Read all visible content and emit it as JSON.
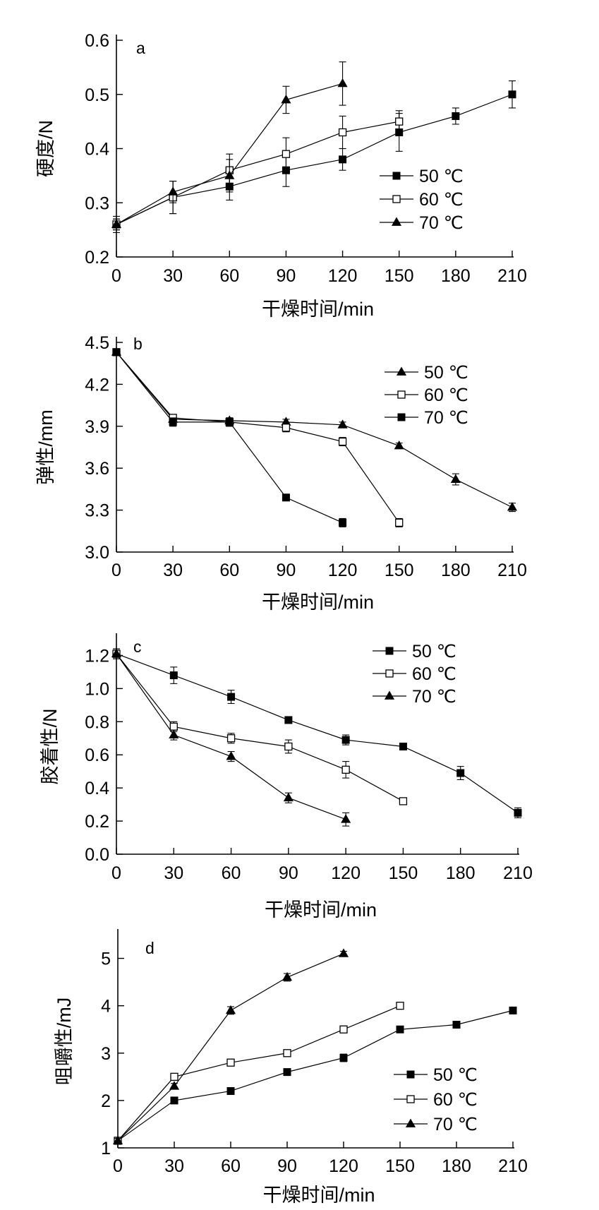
{
  "chart_data": [
    {
      "type": "line",
      "panel_label": "a",
      "xlabel": "干燥时间/min",
      "ylabel": "硬度/N",
      "x_ticks": [
        0,
        30,
        60,
        90,
        120,
        150,
        180,
        210
      ],
      "y_ticks": [
        "0.2",
        "0.3",
        "0.4",
        "0.5",
        "0.6"
      ],
      "xlim": [
        0,
        210
      ],
      "ylim": [
        0.2,
        0.6
      ],
      "legend_position": "lower-right",
      "series": [
        {
          "name": "50 ℃",
          "marker": "filled-square",
          "x": [
            0,
            30,
            60,
            90,
            120,
            150,
            180,
            210
          ],
          "y": [
            0.26,
            0.31,
            0.33,
            0.36,
            0.38,
            0.43,
            0.46,
            0.5
          ],
          "err": [
            0.015,
            0.03,
            0.025,
            0.03,
            0.02,
            0.035,
            0.015,
            0.025
          ]
        },
        {
          "name": "60 ℃",
          "marker": "open-square",
          "x": [
            0,
            30,
            60,
            90,
            120,
            150
          ],
          "y": [
            0.26,
            0.31,
            0.36,
            0.39,
            0.43,
            0.45
          ],
          "err": [
            0.01,
            0.03,
            0.03,
            0.03,
            0.03,
            0.02
          ]
        },
        {
          "name": "70 ℃",
          "marker": "filled-triangle",
          "x": [
            0,
            30,
            60,
            90,
            120
          ],
          "y": [
            0.26,
            0.32,
            0.35,
            0.49,
            0.52
          ],
          "err": [
            0.01,
            0.02,
            0.03,
            0.025,
            0.04
          ]
        }
      ]
    },
    {
      "type": "line",
      "panel_label": "b",
      "xlabel": "干燥时间/min",
      "ylabel": "弹性/mm",
      "x_ticks": [
        0,
        30,
        60,
        90,
        120,
        150,
        180,
        210
      ],
      "y_ticks": [
        "3.0",
        "3.3",
        "3.6",
        "3.9",
        "4.2",
        "4.5"
      ],
      "xlim": [
        0,
        210
      ],
      "ylim": [
        3.0,
        4.5
      ],
      "legend_position": "top-right",
      "series": [
        {
          "name": "50 ℃",
          "marker": "filled-triangle",
          "x": [
            0,
            30,
            60,
            90,
            120,
            150,
            180,
            210
          ],
          "y": [
            4.43,
            3.95,
            3.94,
            3.93,
            3.91,
            3.76,
            3.52,
            3.32
          ],
          "err": [
            0.02,
            0.02,
            0.02,
            0.02,
            0.02,
            0.02,
            0.04,
            0.03
          ]
        },
        {
          "name": "60 ℃",
          "marker": "open-square",
          "x": [
            0,
            30,
            60,
            90,
            120,
            150
          ],
          "y": [
            4.43,
            3.96,
            3.93,
            3.89,
            3.79,
            3.21
          ],
          "err": [
            0.02,
            0.02,
            0.03,
            0.03,
            0.03,
            0.03
          ]
        },
        {
          "name": "70 ℃",
          "marker": "filled-square",
          "x": [
            0,
            30,
            60,
            90,
            120
          ],
          "y": [
            4.43,
            3.93,
            3.93,
            3.39,
            3.21
          ],
          "err": [
            0.02,
            0.03,
            0.03,
            0.02,
            0.03
          ]
        }
      ]
    },
    {
      "type": "line",
      "panel_label": "c",
      "xlabel": "干燥时间/min",
      "ylabel": "胶着性/N",
      "x_ticks": [
        0,
        30,
        60,
        90,
        120,
        150,
        180,
        210
      ],
      "y_ticks": [
        "0.0",
        "0.2",
        "0.4",
        "0.6",
        "0.8",
        "1.0",
        "1.2"
      ],
      "xlim": [
        0,
        210
      ],
      "ylim": [
        0.0,
        1.3
      ],
      "legend_position": "top-right",
      "series": [
        {
          "name": "50 ℃",
          "marker": "filled-square",
          "x": [
            0,
            30,
            60,
            90,
            120,
            150,
            180,
            210
          ],
          "y": [
            1.21,
            1.08,
            0.95,
            0.81,
            0.69,
            0.65,
            0.49,
            0.25
          ],
          "err": [
            0.03,
            0.05,
            0.04,
            0.02,
            0.03,
            0.02,
            0.04,
            0.03
          ]
        },
        {
          "name": "60 ℃",
          "marker": "open-square",
          "x": [
            0,
            30,
            60,
            90,
            120,
            150
          ],
          "y": [
            1.21,
            0.77,
            0.7,
            0.65,
            0.51,
            0.32
          ],
          "err": [
            0.02,
            0.03,
            0.03,
            0.04,
            0.05,
            0.02
          ]
        },
        {
          "name": "70 ℃",
          "marker": "filled-triangle",
          "x": [
            0,
            30,
            60,
            90,
            120
          ],
          "y": [
            1.21,
            0.72,
            0.59,
            0.34,
            0.21
          ],
          "err": [
            0.03,
            0.03,
            0.03,
            0.03,
            0.04
          ]
        }
      ]
    },
    {
      "type": "line",
      "panel_label": "d",
      "xlabel": "干燥时间/min",
      "ylabel": "咀嚼性/mJ",
      "x_ticks": [
        0,
        30,
        60,
        90,
        120,
        150,
        180,
        210
      ],
      "y_ticks": [
        "1",
        "2",
        "3",
        "4",
        "5"
      ],
      "xlim": [
        0,
        210
      ],
      "ylim": [
        1,
        5.5
      ],
      "legend_position": "lower-right",
      "series": [
        {
          "name": "50 ℃",
          "marker": "filled-square",
          "x": [
            0,
            30,
            60,
            90,
            120,
            150,
            180,
            210
          ],
          "y": [
            1.15,
            2.0,
            2.2,
            2.6,
            2.9,
            3.5,
            3.6,
            3.9
          ],
          "err": [
            0.05,
            0.05,
            0.07,
            0.07,
            0.08,
            0.05,
            0.05,
            0.07
          ]
        },
        {
          "name": "60 ℃",
          "marker": "open-square",
          "x": [
            0,
            30,
            60,
            90,
            120,
            150
          ],
          "y": [
            1.15,
            2.5,
            2.8,
            3.0,
            3.5,
            4.0
          ],
          "err": [
            0.05,
            0.06,
            0.05,
            0.05,
            0.05,
            0.05
          ]
        },
        {
          "name": "70 ℃",
          "marker": "filled-triangle",
          "x": [
            0,
            30,
            60,
            90,
            120
          ],
          "y": [
            1.15,
            2.3,
            3.9,
            4.6,
            5.1
          ],
          "err": [
            0.05,
            0.06,
            0.08,
            0.08,
            0.05
          ]
        }
      ]
    }
  ]
}
